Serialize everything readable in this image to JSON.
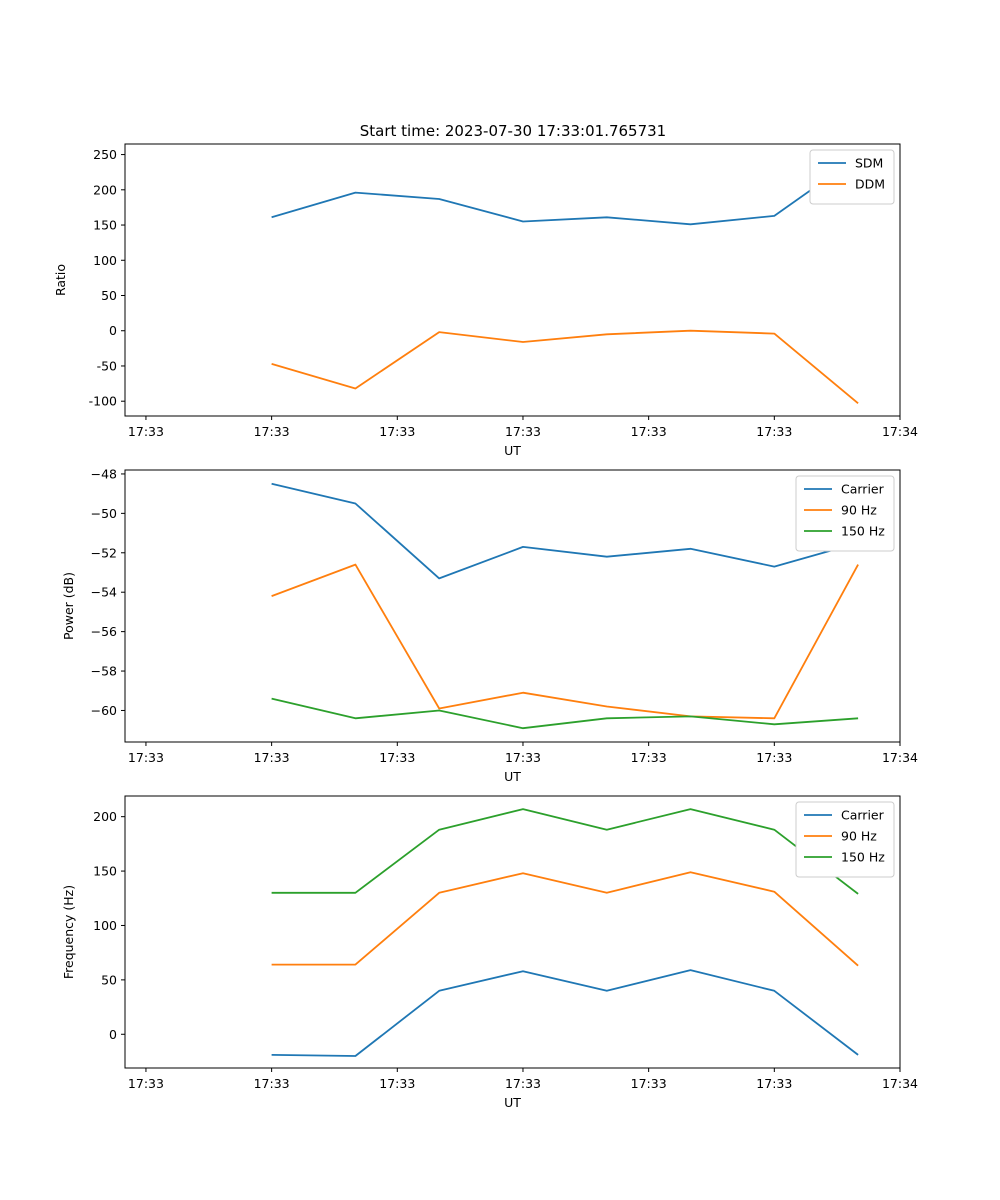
{
  "figure": {
    "title": "Start time: 2023-07-30 17:33:01.765731"
  },
  "chart_data": [
    {
      "type": "line",
      "title": "Start time: 2023-07-30 17:33:01.765731",
      "xlabel": "UT",
      "ylabel": "Ratio",
      "x": [
        1,
        2,
        3,
        4,
        5,
        6,
        7,
        8
      ],
      "xlim": [
        -0.75,
        8.5
      ],
      "xticks": [
        -0.5,
        1.0,
        2.5,
        4.0,
        5.5,
        7.0,
        8.5
      ],
      "xtick_labels": [
        "17:33",
        "17:33",
        "17:33",
        "17:33",
        "17:33",
        "17:33",
        "17:34"
      ],
      "ylim": [
        -121,
        265
      ],
      "yticks": [
        -100,
        -50,
        0,
        50,
        100,
        150,
        200,
        250
      ],
      "legend_position": "upper right",
      "grid": false,
      "series": [
        {
          "name": "SDM",
          "color": "#1f77b4",
          "values": [
            161,
            196,
            187,
            155,
            161,
            151,
            163,
            247
          ]
        },
        {
          "name": "DDM",
          "color": "#ff7f0e",
          "values": [
            -47,
            -82,
            -2,
            -16,
            -5,
            0,
            -4,
            -103
          ]
        }
      ]
    },
    {
      "type": "line",
      "title": "",
      "xlabel": "UT",
      "ylabel": "Power (dB)",
      "x": [
        1,
        2,
        3,
        4,
        5,
        6,
        7,
        8
      ],
      "xlim": [
        -0.75,
        8.5
      ],
      "xticks": [
        -0.5,
        1.0,
        2.5,
        4.0,
        5.5,
        7.0,
        8.5
      ],
      "xtick_labels": [
        "17:33",
        "17:33",
        "17:33",
        "17:33",
        "17:33",
        "17:33",
        "17:34"
      ],
      "ylim": [
        -61.6,
        -47.8
      ],
      "yticks": [
        -60,
        -58,
        -56,
        -54,
        -52,
        -50,
        -48
      ],
      "ytick_labels": [
        "−60",
        "−58",
        "−56",
        "−54",
        "−52",
        "−50",
        "−48"
      ],
      "legend_position": "upper right",
      "grid": false,
      "series": [
        {
          "name": "Carrier",
          "color": "#1f77b4",
          "values": [
            -48.5,
            -49.5,
            -53.3,
            -51.7,
            -52.2,
            -51.8,
            -52.7,
            -51.5
          ]
        },
        {
          "name": "90 Hz",
          "color": "#ff7f0e",
          "values": [
            -54.2,
            -52.6,
            -59.9,
            -59.1,
            -59.8,
            -60.3,
            -60.4,
            -52.6
          ]
        },
        {
          "name": "150 Hz",
          "color": "#2ca02c",
          "values": [
            -59.4,
            -60.4,
            -60.0,
            -60.9,
            -60.4,
            -60.3,
            -60.7,
            -60.4
          ]
        }
      ]
    },
    {
      "type": "line",
      "title": "",
      "xlabel": "UT",
      "ylabel": "Frequency (Hz)",
      "x": [
        1,
        2,
        3,
        4,
        5,
        6,
        7,
        8
      ],
      "xlim": [
        -0.75,
        8.5
      ],
      "xticks": [
        -0.5,
        1.0,
        2.5,
        4.0,
        5.5,
        7.0,
        8.5
      ],
      "xtick_labels": [
        "17:33",
        "17:33",
        "17:33",
        "17:33",
        "17:33",
        "17:33",
        "17:34"
      ],
      "ylim": [
        -31,
        219
      ],
      "yticks": [
        0,
        50,
        100,
        150,
        200
      ],
      "legend_position": "upper right",
      "grid": false,
      "series": [
        {
          "name": "Carrier",
          "color": "#1f77b4",
          "values": [
            -19,
            -20,
            40,
            58,
            40,
            59,
            40,
            -19
          ]
        },
        {
          "name": "90 Hz",
          "color": "#ff7f0e",
          "values": [
            64,
            64,
            130,
            148,
            130,
            149,
            131,
            63
          ]
        },
        {
          "name": "150 Hz",
          "color": "#2ca02c",
          "values": [
            130,
            130,
            188,
            207,
            188,
            207,
            188,
            129
          ]
        }
      ]
    }
  ]
}
